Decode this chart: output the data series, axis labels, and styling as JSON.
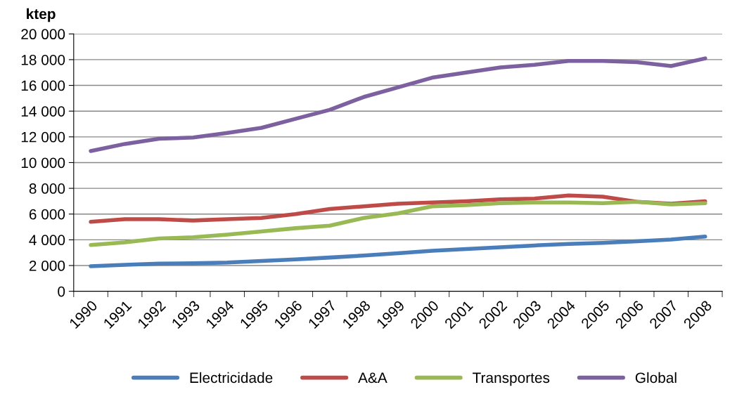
{
  "chart_data": {
    "type": "line",
    "ylabel": "ktep",
    "categories": [
      "1990",
      "1991",
      "1992",
      "1993",
      "1994",
      "1995",
      "1996",
      "1997",
      "1998",
      "1999",
      "2000",
      "2001",
      "2002",
      "2003",
      "2004",
      "2005",
      "2006",
      "2007",
      "2008"
    ],
    "series": [
      {
        "name": "Electricidade",
        "color": "#4a7ebb",
        "values": [
          1950,
          2050,
          2150,
          2170,
          2230,
          2350,
          2480,
          2620,
          2780,
          2950,
          3150,
          3280,
          3420,
          3560,
          3680,
          3760,
          3880,
          4020,
          4250
        ]
      },
      {
        "name": "A&A",
        "color": "#be4b48",
        "values": [
          5400,
          5600,
          5600,
          5500,
          5600,
          5700,
          6000,
          6400,
          6600,
          6800,
          6900,
          7000,
          7150,
          7200,
          7450,
          7350,
          6950,
          6800,
          7000
        ]
      },
      {
        "name": "Transportes",
        "color": "#98b954",
        "values": [
          3600,
          3800,
          4100,
          4200,
          4400,
          4650,
          4900,
          5100,
          5700,
          6050,
          6600,
          6700,
          6850,
          6900,
          6900,
          6850,
          6950,
          6750,
          6850
        ]
      },
      {
        "name": "Global",
        "color": "#7d60a0",
        "values": [
          10900,
          11450,
          11850,
          11950,
          12300,
          12700,
          13400,
          14100,
          15100,
          15850,
          16600,
          17000,
          17400,
          17600,
          17900,
          17900,
          17800,
          17500,
          18100
        ]
      }
    ],
    "ylim": [
      0,
      20000
    ],
    "yticks": [
      0,
      {
        "value": 2000,
        "label": "2 000"
      },
      {
        "value": 4000,
        "label": "4 000"
      },
      {
        "value": 6000,
        "label": "6 000"
      },
      {
        "value": 8000,
        "label": "8 000"
      },
      {
        "value": 10000,
        "label": "10 000"
      },
      {
        "value": 12000,
        "label": "12 000"
      },
      {
        "value": 14000,
        "label": "14 000"
      },
      {
        "value": 16000,
        "label": "16 000"
      },
      {
        "value": 18000,
        "label": "18 000"
      },
      {
        "value": 20000,
        "label": "20 000"
      }
    ],
    "grid": "y",
    "legend": "bottom",
    "marker": "none",
    "line_style": "solid"
  }
}
